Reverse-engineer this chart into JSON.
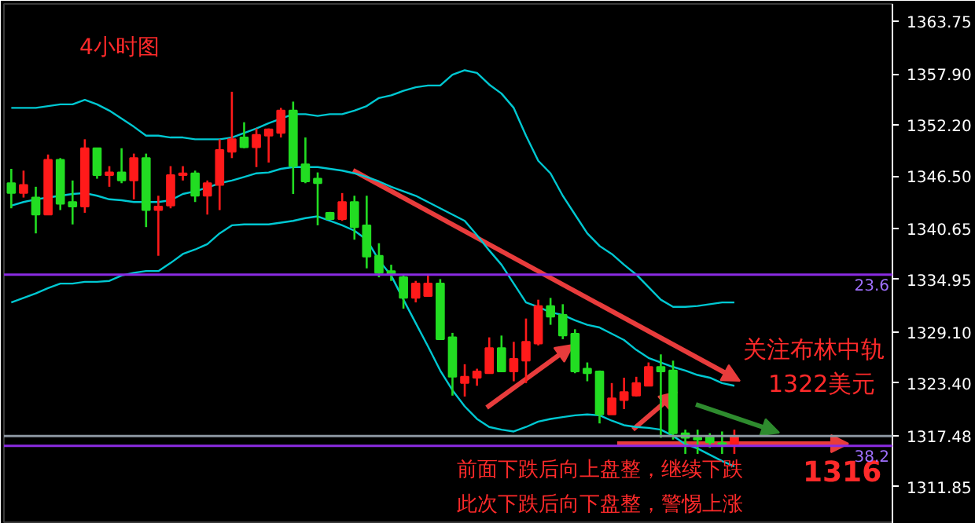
{
  "chart_data": {
    "type": "candlestick",
    "title": "4小时图",
    "categories": [
      null,
      null,
      null,
      null,
      null,
      null,
      null,
      null,
      null,
      null,
      null,
      null,
      null,
      null,
      null,
      null,
      null,
      null,
      null,
      null,
      null,
      null,
      null,
      null,
      null,
      null,
      null,
      null,
      null,
      null,
      null,
      null,
      null,
      null,
      null,
      null,
      null,
      null,
      null,
      null,
      null,
      null,
      null,
      null,
      null,
      null,
      null,
      null,
      null,
      null,
      null,
      null,
      null,
      null,
      null,
      null,
      null,
      null,
      null,
      null
    ],
    "ohlc": [
      [
        1345.7,
        1347.3,
        1342.9,
        1344.6
      ],
      [
        1344.6,
        1347.1,
        1344.1,
        1345.5
      ],
      [
        1344.1,
        1345.3,
        1340.1,
        1342.2
      ],
      [
        1342.2,
        1348.9,
        1342.2,
        1348.3
      ],
      [
        1348.3,
        1348.5,
        1342.7,
        1343.4
      ],
      [
        1343.6,
        1346.0,
        1341.1,
        1343.1
      ],
      [
        1343.1,
        1350.6,
        1342.4,
        1349.6
      ],
      [
        1349.6,
        1349.6,
        1346.2,
        1346.6
      ],
      [
        1346.6,
        1347.6,
        1345.3,
        1346.9
      ],
      [
        1346.9,
        1349.6,
        1345.7,
        1346.0
      ],
      [
        1346.0,
        1349.0,
        1343.9,
        1348.5
      ],
      [
        1348.5,
        1349.0,
        1340.8,
        1342.7
      ],
      [
        1342.7,
        1344.3,
        1337.6,
        1343.1
      ],
      [
        1343.2,
        1347.6,
        1342.9,
        1346.6
      ],
      [
        1346.6,
        1347.6,
        1346.0,
        1346.8
      ],
      [
        1346.8,
        1347.1,
        1343.6,
        1344.3
      ],
      [
        1344.3,
        1346.0,
        1342.2,
        1345.7
      ],
      [
        1345.5,
        1350.6,
        1342.7,
        1349.4
      ],
      [
        1349.2,
        1355.9,
        1348.5,
        1350.6
      ],
      [
        1350.8,
        1352.5,
        1349.6,
        1349.7
      ],
      [
        1349.7,
        1351.8,
        1347.5,
        1351.1
      ],
      [
        1351.0,
        1351.8,
        1348.0,
        1351.7
      ],
      [
        1351.3,
        1354.1,
        1350.8,
        1353.8
      ],
      [
        1353.8,
        1354.8,
        1344.5,
        1347.6
      ],
      [
        1347.8,
        1350.8,
        1345.7,
        1345.9
      ],
      [
        1346.2,
        1346.9,
        1341.0,
        1345.7
      ],
      [
        1342.4,
        1342.5,
        1341.7,
        1341.7
      ],
      [
        1341.7,
        1344.6,
        1341.5,
        1343.6
      ],
      [
        1343.6,
        1344.3,
        1339.4,
        1340.8
      ],
      [
        1341.0,
        1344.3,
        1336.2,
        1337.5
      ],
      [
        1337.6,
        1339.0,
        1335.2,
        1335.7
      ],
      [
        1335.9,
        1336.6,
        1334.8,
        1335.5
      ],
      [
        1335.2,
        1335.5,
        1331.7,
        1332.9
      ],
      [
        1332.9,
        1334.8,
        1332.4,
        1334.5
      ],
      [
        1333.1,
        1335.4,
        1333.1,
        1334.5
      ],
      [
        1334.5,
        1335.0,
        1328.3,
        1328.3
      ],
      [
        1328.5,
        1329.0,
        1322.0,
        1324.1
      ],
      [
        1323.4,
        1325.5,
        1321.9,
        1324.1
      ],
      [
        1324.0,
        1325.0,
        1323.1,
        1324.7
      ],
      [
        1324.5,
        1328.5,
        1324.5,
        1327.3
      ],
      [
        1327.3,
        1328.7,
        1324.7,
        1324.7
      ],
      [
        1324.7,
        1328.0,
        1323.6,
        1326.1
      ],
      [
        1325.9,
        1330.6,
        1323.4,
        1328.0
      ],
      [
        1327.8,
        1332.7,
        1327.6,
        1332.0
      ],
      [
        1332.0,
        1332.9,
        1329.9,
        1330.8
      ],
      [
        1331.0,
        1332.2,
        1328.3,
        1328.7
      ],
      [
        1328.9,
        1329.4,
        1324.5,
        1324.7
      ],
      [
        1325.0,
        1325.7,
        1323.6,
        1324.5
      ],
      [
        1324.7,
        1324.8,
        1318.9,
        1319.9
      ],
      [
        1319.9,
        1323.4,
        1319.9,
        1321.7
      ],
      [
        1321.5,
        1324.0,
        1320.5,
        1322.4
      ],
      [
        1322.0,
        1324.1,
        1321.9,
        1323.4
      ],
      [
        1323.1,
        1325.7,
        1323.1,
        1325.2
      ],
      [
        1325.2,
        1326.6,
        1317.3,
        1324.7
      ],
      [
        1324.8,
        1325.9,
        1317.1,
        1317.8
      ],
      [
        1317.8,
        1318.2,
        1315.5,
        1317.3
      ],
      [
        1317.3,
        1318.2,
        1315.5,
        1317.1
      ],
      [
        1317.5,
        1317.8,
        1316.2,
        1316.8
      ],
      [
        1316.7,
        1318.0,
        1315.5,
        1316.6
      ],
      [
        1316.6,
        1318.2,
        1315.5,
        1317.5
      ]
    ],
    "colors": [
      "#22dd22",
      "#ff1a1a",
      "#22dd22",
      "#ff1a1a",
      "#22dd22",
      "#22dd22",
      "#ff1a1a",
      "#22dd22",
      "#ff1a1a",
      "#22dd22",
      "#ff1a1a",
      "#22dd22",
      "#ff1a1a",
      "#ff1a1a",
      "#ff1a1a",
      "#22dd22",
      "#ff1a1a",
      "#ff1a1a",
      "#ff1a1a",
      "#22dd22",
      "#ff1a1a",
      "#ff1a1a",
      "#ff1a1a",
      "#22dd22",
      "#22dd22",
      "#22dd22",
      "#22dd22",
      "#ff1a1a",
      "#22dd22",
      "#22dd22",
      "#22dd22",
      "#22dd22",
      "#22dd22",
      "#ff1a1a",
      "#ff1a1a",
      "#22dd22",
      "#22dd22",
      "#ff1a1a",
      "#ff1a1a",
      "#ff1a1a",
      "#22dd22",
      "#ff1a1a",
      "#ff1a1a",
      "#ff1a1a",
      "#22dd22",
      "#22dd22",
      "#22dd22",
      "#22dd22",
      "#22dd22",
      "#ff1a1a",
      "#ff1a1a",
      "#ff1a1a",
      "#ff1a1a",
      "#22dd22",
      "#22dd22",
      "#22dd22",
      "#22dd22",
      "#22dd22",
      "#22dd22",
      "#ff1a1a"
    ],
    "series": [
      {
        "type": "line",
        "color": "#00c8d2",
        "values": [
          1354.1,
          1354.1,
          1354.1,
          1354.3,
          1354.5,
          1354.5,
          1355.0,
          1354.5,
          1353.8,
          1352.9,
          1352.0,
          1351.0,
          1351.0,
          1350.8,
          1350.8,
          1350.6,
          1350.6,
          1350.6,
          1350.8,
          1351.3,
          1351.8,
          1352.4,
          1352.9,
          1353.4,
          1353.4,
          1353.2,
          1353.4,
          1353.4,
          1353.8,
          1354.3,
          1355.2,
          1355.5,
          1356.0,
          1356.4,
          1356.6,
          1356.6,
          1357.8,
          1358.3,
          1358.0,
          1356.7,
          1355.7,
          1354.1,
          1351.0,
          1348.2,
          1346.8,
          1344.3,
          1342.2,
          1340.1,
          1338.7,
          1337.8,
          1336.6,
          1335.5,
          1334.1,
          1332.7,
          1331.9,
          1331.9,
          1332.0,
          1332.2,
          1332.4,
          1332.4
        ]
      },
      {
        "type": "line",
        "color": "#00c8d2",
        "values": [
          1343.2,
          1343.6,
          1343.9,
          1344.1,
          1344.3,
          1344.5,
          1344.6,
          1344.3,
          1343.9,
          1343.8,
          1343.6,
          1343.6,
          1343.6,
          1343.8,
          1344.5,
          1344.8,
          1345.2,
          1345.7,
          1346.0,
          1346.4,
          1346.8,
          1346.9,
          1347.3,
          1347.5,
          1347.5,
          1347.5,
          1347.3,
          1347.1,
          1346.8,
          1346.4,
          1345.9,
          1345.3,
          1344.8,
          1344.3,
          1343.6,
          1342.9,
          1342.2,
          1341.5,
          1339.9,
          1338.2,
          1336.6,
          1334.5,
          1332.4,
          1331.9,
          1331.3,
          1331.0,
          1330.4,
          1329.9,
          1329.6,
          1328.9,
          1328.2,
          1327.1,
          1326.2,
          1325.7,
          1325.2,
          1324.8,
          1324.3,
          1324.0,
          1323.4,
          1323.1
        ]
      },
      {
        "type": "line",
        "color": "#00c8d2",
        "values": [
          1332.4,
          1332.9,
          1333.4,
          1334.0,
          1334.5,
          1334.5,
          1334.7,
          1334.7,
          1334.8,
          1335.4,
          1335.7,
          1335.9,
          1335.9,
          1336.8,
          1337.8,
          1338.3,
          1338.9,
          1340.1,
          1341.0,
          1341.1,
          1341.1,
          1341.1,
          1341.3,
          1341.5,
          1341.8,
          1342.0,
          1341.5,
          1341.0,
          1340.4,
          1339.4,
          1337.1,
          1335.4,
          1332.7,
          1330.1,
          1327.5,
          1324.8,
          1322.6,
          1320.8,
          1319.4,
          1318.5,
          1318.2,
          1318.0,
          1318.5,
          1319.1,
          1319.4,
          1319.6,
          1319.8,
          1319.9,
          1319.8,
          1319.2,
          1318.7,
          1318.5,
          1318.4,
          1318.2,
          1317.5,
          1316.6,
          1316.1,
          1315.4,
          1314.7,
          1314.1
        ]
      }
    ],
    "ylim": [
      1307.7,
      1365.7
    ],
    "yticks": [
      1363.75,
      {
        "value": 1357.9,
        "label": "1357.90"
      },
      {
        "value": 1352.2,
        "label": "1352.20"
      },
      {
        "value": 1346.5,
        "label": "1346.50"
      },
      1340.65,
      1334.95,
      {
        "value": 1329.1,
        "label": "1329.10"
      },
      {
        "value": 1323.4,
        "label": "1323.40"
      },
      1317.48,
      1311.85
    ],
    "ref_lines": [
      {
        "axis": "y",
        "value": 1335.5,
        "color": "#8a2be2"
      },
      {
        "axis": "y",
        "value": 1316.4,
        "color": "#8a2be2"
      },
      {
        "axis": "y",
        "value": 1317.48,
        "color": "#8c96a0"
      }
    ],
    "annotations": [
      "关注布林中轨",
      "1322美元",
      "前面下跌后向上盘整，继续下跌",
      "此次下跌后向下盘整，警惕上涨",
      "1316",
      {
        "text": "23.6",
        "y": 1335.5
      },
      {
        "text": "38.2",
        "y": 1316.4
      }
    ],
    "tick_labels": "y",
    "grid": false
  }
}
